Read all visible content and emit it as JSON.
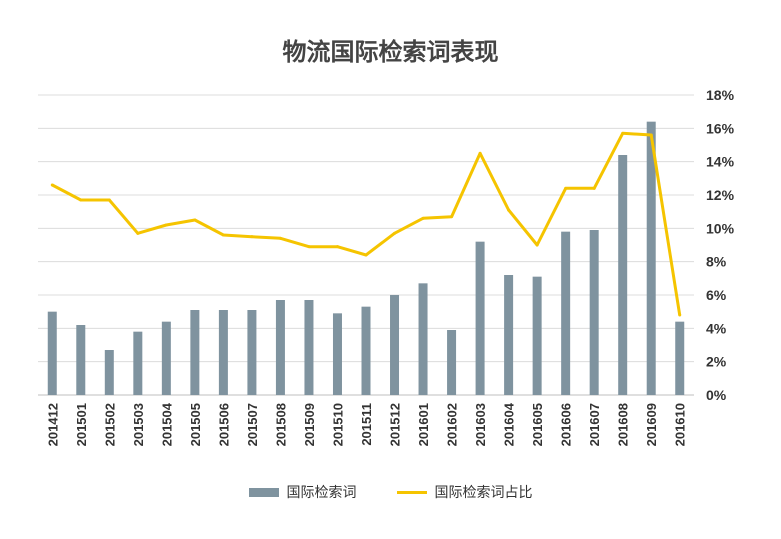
{
  "chart_data": {
    "type": "bar+line",
    "title": "物流国际检索词表现",
    "categories": [
      "201412",
      "201501",
      "201502",
      "201503",
      "201504",
      "201505",
      "201506",
      "201507",
      "201508",
      "201509",
      "201510",
      "201511",
      "201512",
      "201601",
      "201602",
      "201603",
      "201604",
      "201605",
      "201606",
      "201607",
      "201608",
      "201609",
      "201610"
    ],
    "series": [
      {
        "name": "国际检索词",
        "type": "bar",
        "axis": "left-hidden",
        "color": "#7f939f",
        "values": [
          5.0,
          4.2,
          2.7,
          3.8,
          4.4,
          5.1,
          5.1,
          5.1,
          5.7,
          5.7,
          4.9,
          5.3,
          6.0,
          6.7,
          3.9,
          9.2,
          7.2,
          7.1,
          9.8,
          9.9,
          14.4,
          16.4,
          4.4
        ]
      },
      {
        "name": "国际检索词占比",
        "type": "line",
        "axis": "right",
        "color": "#f5c400",
        "values": [
          12.6,
          11.7,
          11.7,
          9.7,
          10.2,
          10.5,
          9.6,
          9.5,
          9.4,
          8.9,
          8.9,
          8.4,
          9.7,
          10.6,
          10.7,
          14.5,
          11.1,
          9.0,
          12.4,
          12.4,
          15.7,
          15.6,
          4.8
        ]
      }
    ],
    "y_right": {
      "ticks": [
        "0%",
        "2%",
        "4%",
        "6%",
        "8%",
        "10%",
        "12%",
        "14%",
        "16%",
        "18%"
      ],
      "min": 0,
      "max": 18
    },
    "grid": true,
    "legend_position": "bottom"
  }
}
